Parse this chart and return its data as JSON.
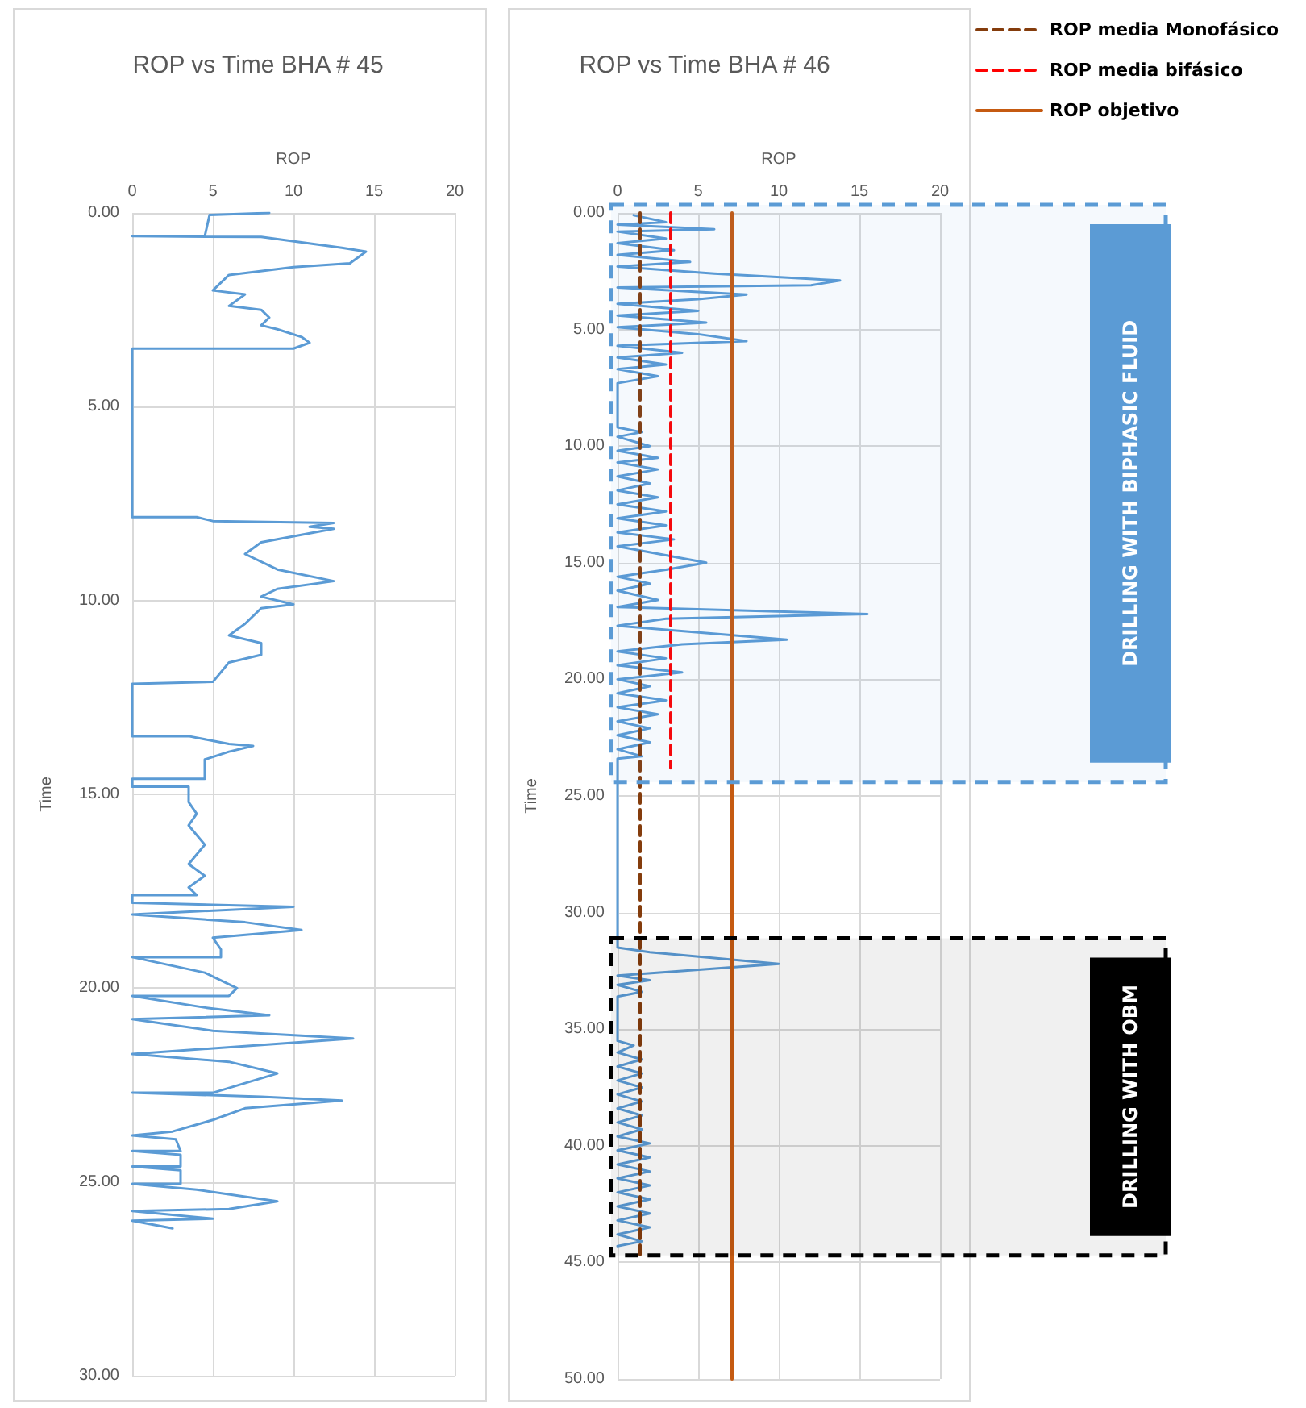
{
  "chart_data": [
    {
      "type": "line",
      "title": "ROP vs Time BHA # 45",
      "xlabel": "ROP",
      "ylabel": "Time",
      "xlim": [
        0,
        20
      ],
      "xticks": [
        0,
        5,
        10,
        15,
        20
      ],
      "ylim": [
        30,
        0
      ],
      "yticks": [
        {
          "value": 0,
          "label": "0.00"
        },
        {
          "value": 5,
          "label": "5.00"
        },
        {
          "value": 10,
          "label": "10.00"
        },
        {
          "value": 15,
          "label": "15.00"
        },
        {
          "value": 20,
          "label": "20.00"
        },
        {
          "value": 25,
          "label": "25.00"
        },
        {
          "value": 30,
          "label": "30.00"
        }
      ],
      "grid": true,
      "marker": "none",
      "series": [
        {
          "color": "#5b9bd5",
          "line_style": "solid",
          "x": [
            8.5,
            4.8,
            4.5,
            0,
            8,
            13,
            14.5,
            13.5,
            10,
            6,
            5,
            7,
            6,
            8,
            8.5,
            8,
            9,
            10.5,
            11,
            10,
            0,
            0,
            4,
            5,
            12.5,
            11,
            12.5,
            8,
            7,
            9,
            12.5,
            9,
            8,
            10,
            8,
            7,
            6,
            8,
            8,
            6,
            5,
            0,
            0,
            3.5,
            6,
            7.5,
            6,
            4.5,
            4.5,
            0,
            0,
            3.5,
            3.5,
            4,
            3.5,
            4.5,
            3.5,
            4.5,
            3.5,
            4,
            0,
            0,
            10,
            0,
            7,
            10.5,
            5,
            5.5,
            5.5,
            0,
            4.5,
            6.5,
            6,
            0,
            4.5,
            8.5,
            0,
            5,
            13.7,
            0,
            6,
            9,
            5,
            0,
            8,
            13,
            7,
            5,
            2.5,
            0,
            2.7,
            3,
            0,
            3,
            3,
            0,
            3,
            3,
            0,
            4,
            9,
            6,
            0,
            5,
            0,
            2.5
          ],
          "values": [
            0,
            0.05,
            0.6,
            0.6,
            0.62,
            0.9,
            1.0,
            1.3,
            1.4,
            1.6,
            2.0,
            2.1,
            2.4,
            2.5,
            2.7,
            2.9,
            3.0,
            3.2,
            3.35,
            3.5,
            3.5,
            7.85,
            7.85,
            7.95,
            8.0,
            8.1,
            8.15,
            8.5,
            8.8,
            9.2,
            9.5,
            9.7,
            9.9,
            10.1,
            10.2,
            10.6,
            10.9,
            11.1,
            11.4,
            11.6,
            12.1,
            12.15,
            13.5,
            13.5,
            13.7,
            13.75,
            13.9,
            14.1,
            14.6,
            14.6,
            14.8,
            14.8,
            15.2,
            15.5,
            15.8,
            16.3,
            16.8,
            17.1,
            17.4,
            17.6,
            17.6,
            17.8,
            17.9,
            18.1,
            18.3,
            18.5,
            18.7,
            19.0,
            19.2,
            19.2,
            19.6,
            20.0,
            20.2,
            20.2,
            20.5,
            20.7,
            20.8,
            21.1,
            21.3,
            21.7,
            21.9,
            22.2,
            22.7,
            22.7,
            22.8,
            22.9,
            23.1,
            23.4,
            23.7,
            23.8,
            23.9,
            24.2,
            24.2,
            24.3,
            24.6,
            24.6,
            24.7,
            25.05,
            25.05,
            25.2,
            25.5,
            25.7,
            25.75,
            25.95,
            26.0,
            26.2
          ]
        }
      ]
    },
    {
      "type": "line",
      "title": "ROP vs Time BHA # 46",
      "xlabel": "ROP",
      "ylabel": "Time",
      "xlim": [
        0,
        20
      ],
      "xticks": [
        0,
        5,
        10,
        15,
        20
      ],
      "ylim": [
        50,
        0
      ],
      "yticks": [
        {
          "value": 0,
          "label": "0.00"
        },
        {
          "value": 5,
          "label": "5.00"
        },
        {
          "value": 10,
          "label": "10.00"
        },
        {
          "value": 15,
          "label": "15.00"
        },
        {
          "value": 20,
          "label": "20.00"
        },
        {
          "value": 25,
          "label": "25.00"
        },
        {
          "value": 30,
          "label": "30.00"
        },
        {
          "value": 35,
          "label": "35.00"
        },
        {
          "value": 40,
          "label": "40.00"
        },
        {
          "value": 45,
          "label": "45.00"
        },
        {
          "value": 50,
          "label": "50.00"
        }
      ],
      "grid": true,
      "marker": "none",
      "legend": "top right",
      "series": [
        {
          "color": "#5b9bd5",
          "line_style": "solid",
          "x": [
            1,
            3,
            0,
            6,
            0,
            3,
            0,
            3.5,
            0,
            4.5,
            0,
            6,
            13.8,
            12,
            0,
            8,
            5,
            0,
            5,
            0,
            5.5,
            0,
            5,
            8,
            0,
            4,
            0,
            3,
            0,
            2.5,
            0,
            0,
            1.5,
            0,
            2,
            0,
            2.5,
            0,
            2.5,
            0,
            2,
            0,
            2.5,
            0,
            3,
            0,
            3,
            0,
            3.5,
            0,
            5.5,
            3,
            0,
            2,
            0,
            2.5,
            0,
            15.5,
            3,
            0,
            10.5,
            4,
            0,
            3,
            0,
            4,
            0,
            2,
            0,
            3,
            0,
            2.5,
            0,
            2,
            0,
            2,
            0,
            1.5,
            0,
            0,
            2,
            10,
            4,
            0,
            2,
            0,
            1.5,
            0,
            0,
            1,
            0,
            1.5,
            0,
            1.5,
            0,
            1.5,
            0,
            1.5,
            0,
            1.5,
            0,
            1.5,
            0,
            2,
            0,
            2,
            0,
            2,
            0,
            2,
            0,
            2,
            0,
            2,
            0,
            2,
            0,
            1.5,
            0
          ],
          "values": [
            0.1,
            0.4,
            0.5,
            0.7,
            0.8,
            1.1,
            1.3,
            1.6,
            1.8,
            2.1,
            2.3,
            2.6,
            2.9,
            3.1,
            3.2,
            3.5,
            3.7,
            3.9,
            4.2,
            4.4,
            4.7,
            4.9,
            5.2,
            5.5,
            5.7,
            6.0,
            6.2,
            6.5,
            6.7,
            7.0,
            7.3,
            9.2,
            9.4,
            9.6,
            10.0,
            10.2,
            10.5,
            10.7,
            11.0,
            11.3,
            11.6,
            11.9,
            12.2,
            12.5,
            12.8,
            13.1,
            13.4,
            13.7,
            14.0,
            14.3,
            15.0,
            15.3,
            15.6,
            15.9,
            16.2,
            16.6,
            16.9,
            17.2,
            17.4,
            17.7,
            18.3,
            18.5,
            18.8,
            19.1,
            19.4,
            19.7,
            20.0,
            20.3,
            20.6,
            20.9,
            21.2,
            21.5,
            21.8,
            22.1,
            22.4,
            22.7,
            23.0,
            23.3,
            23.4,
            31.5,
            31.7,
            32.2,
            32.5,
            32.7,
            32.9,
            33.1,
            33.4,
            33.6,
            35.5,
            35.7,
            36.0,
            36.3,
            36.6,
            36.9,
            37.2,
            37.5,
            37.8,
            38.1,
            38.4,
            38.7,
            39.0,
            39.3,
            39.6,
            39.9,
            40.2,
            40.5,
            40.8,
            41.1,
            41.4,
            41.7,
            42.0,
            42.3,
            42.6,
            42.9,
            43.2,
            43.5,
            43.8,
            44.1,
            44.3
          ]
        },
        {
          "name": "ROP media Monofásico",
          "color": "#843c0c",
          "line_style": "dashed",
          "x": [
            1.4,
            1.4
          ],
          "values": [
            0,
            44.7
          ]
        },
        {
          "name": "ROP media bifásico",
          "color": "#ff0000",
          "line_style": "dashed",
          "x": [
            3.3,
            3.3
          ],
          "values": [
            0,
            23.8
          ]
        },
        {
          "name": "ROP objetivo",
          "color": "#c55a11",
          "line_style": "solid",
          "x": [
            7.1,
            7.1
          ],
          "values": [
            0,
            50
          ]
        }
      ],
      "bands": [
        {
          "axis": "y",
          "from": 0,
          "to": 24.4,
          "label": "DRILLING WITH BIPHASIC FLUID",
          "color": "#5b9bd5"
        },
        {
          "axis": "y",
          "from": 31.1,
          "to": 44.7,
          "label": "DRILLING WITH OBM",
          "color": "#000000"
        }
      ]
    }
  ]
}
